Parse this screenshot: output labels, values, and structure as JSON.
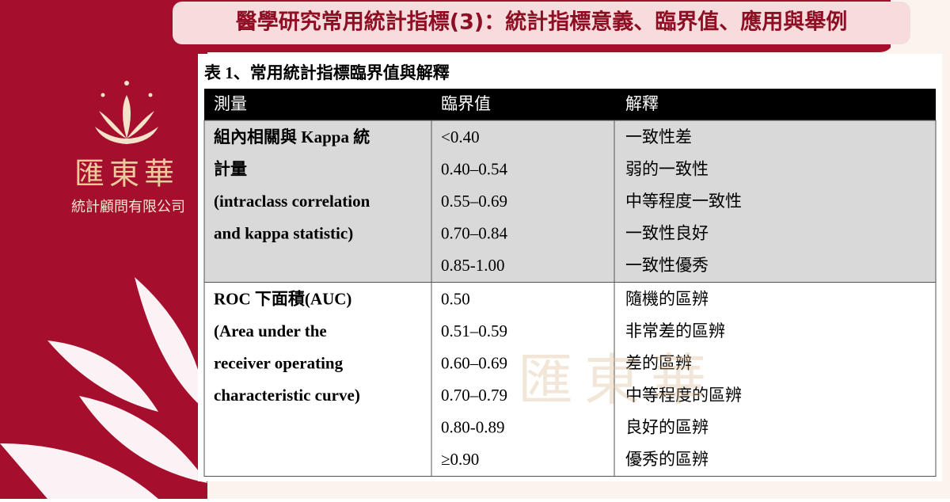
{
  "header": {
    "title": "醫學研究常用統計指標(3)：統計指標意義、臨界值、應用與舉例"
  },
  "logo": {
    "name": "匯東華",
    "company": "統計顧問有限公司"
  },
  "table": {
    "caption": "表 1、常用統計指標臨界值與解釋",
    "header": [
      "測量",
      "臨界值",
      "解釋"
    ],
    "groups": [
      {
        "measure": [
          "組內相關與 Kappa 統",
          "計量",
          "(intraclass correlation",
          "and kappa statistic)"
        ],
        "rows": [
          [
            "<0.40",
            "一致性差"
          ],
          [
            "0.40–0.54",
            "弱的一致性"
          ],
          [
            "0.55–0.69",
            "中等程度一致性"
          ],
          [
            "0.70–0.84",
            "一致性良好"
          ],
          [
            "0.85-1.00",
            "一致性優秀"
          ]
        ]
      },
      {
        "measure": [
          "ROC 下面積(AUC)",
          "(Area under the",
          "receiver operating",
          "characteristic curve)"
        ],
        "rows": [
          [
            "0.50",
            "隨機的區辨"
          ],
          [
            "0.51–0.59",
            "非常差的區辨"
          ],
          [
            "0.60–0.69",
            "差的區辨"
          ],
          [
            "0.70–0.79",
            "中等程度的區辨"
          ],
          [
            "0.80-0.89",
            "良好的區辨"
          ],
          [
            "≥0.90",
            "優秀的區辨"
          ]
        ]
      }
    ]
  }
}
